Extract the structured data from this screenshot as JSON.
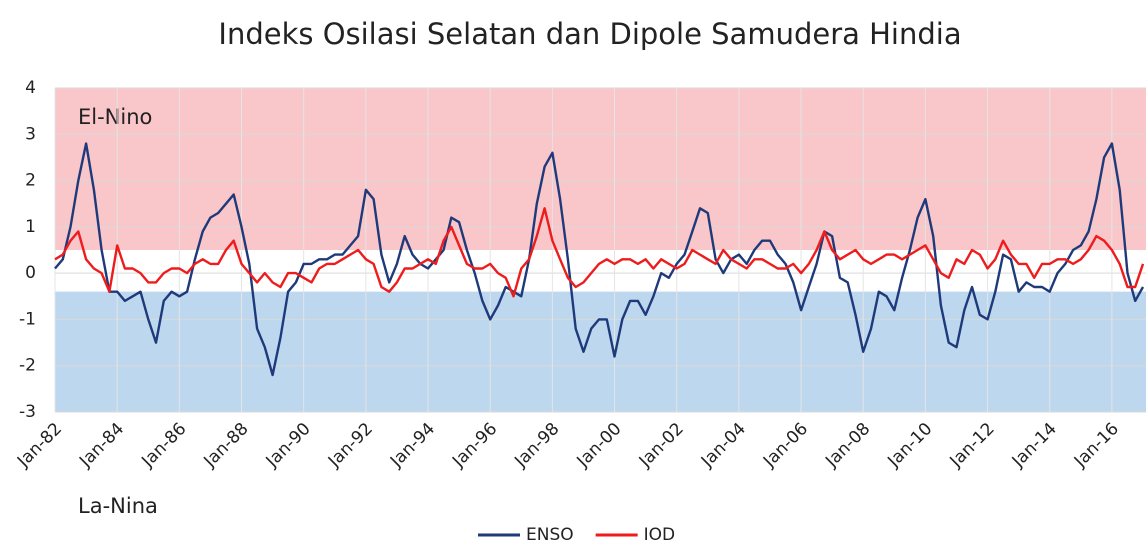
{
  "chart_data": {
    "type": "line",
    "title": "Indeks Osilasi Selatan dan Dipole Samudera Hindia",
    "categories": [
      "Jan-82",
      null,
      null,
      null,
      null,
      null,
      null,
      null,
      "Jan-84",
      null,
      null,
      null,
      null,
      null,
      null,
      null,
      "Jan-86",
      null,
      null,
      null,
      null,
      null,
      null,
      null,
      "Jan-88",
      null,
      null,
      null,
      null,
      null,
      null,
      null,
      "Jan-90",
      null,
      null,
      null,
      null,
      null,
      null,
      null,
      "Jan-92",
      null,
      null,
      null,
      null,
      null,
      null,
      null,
      "Jan-94",
      null,
      null,
      null,
      null,
      null,
      null,
      null,
      "Jan-96",
      null,
      null,
      null,
      null,
      null,
      null,
      null,
      "Jan-98",
      null,
      null,
      null,
      null,
      null,
      null,
      null,
      "Jan-00",
      null,
      null,
      null,
      null,
      null,
      null,
      null,
      "Jan-02",
      null,
      null,
      null,
      null,
      null,
      null,
      null,
      "Jan-04",
      null,
      null,
      null,
      null,
      null,
      null,
      null,
      "Jan-06",
      null,
      null,
      null,
      null,
      null,
      null,
      null,
      "Jan-08",
      null,
      null,
      null,
      null,
      null,
      null,
      null,
      "Jan-10",
      null,
      null,
      null,
      null,
      null,
      null,
      null,
      "Jan-12",
      null,
      null,
      null,
      null,
      null,
      null,
      null,
      "Jan-14",
      null,
      null,
      null,
      null,
      null,
      null,
      null,
      "Jan-16",
      null,
      null,
      null,
      null
    ],
    "series": [
      {
        "name": "ENSO",
        "color": "#1f3a7a",
        "values": [
          0.1,
          0.3,
          1.0,
          2.0,
          2.8,
          1.8,
          0.5,
          -0.4,
          -0.4,
          -0.6,
          -0.5,
          -0.4,
          -1.0,
          -1.5,
          -0.6,
          -0.4,
          -0.5,
          -0.4,
          0.3,
          0.9,
          1.2,
          1.3,
          1.5,
          1.7,
          1.0,
          0.2,
          -1.2,
          -1.6,
          -2.2,
          -1.4,
          -0.4,
          -0.2,
          0.2,
          0.2,
          0.3,
          0.3,
          0.4,
          0.4,
          0.6,
          0.8,
          1.8,
          1.6,
          0.4,
          -0.2,
          0.2,
          0.8,
          0.4,
          0.2,
          0.1,
          0.3,
          0.5,
          1.2,
          1.1,
          0.5,
          0.0,
          -0.6,
          -1.0,
          -0.7,
          -0.3,
          -0.4,
          -0.5,
          0.3,
          1.5,
          2.3,
          2.6,
          1.6,
          0.3,
          -1.2,
          -1.7,
          -1.2,
          -1.0,
          -1.0,
          -1.8,
          -1.0,
          -0.6,
          -0.6,
          -0.9,
          -0.5,
          0.0,
          -0.1,
          0.2,
          0.4,
          0.9,
          1.4,
          1.3,
          0.3,
          0.0,
          0.3,
          0.4,
          0.2,
          0.5,
          0.7,
          0.7,
          0.4,
          0.2,
          -0.2,
          -0.8,
          -0.3,
          0.2,
          0.9,
          0.8,
          -0.1,
          -0.2,
          -0.9,
          -1.7,
          -1.2,
          -0.4,
          -0.5,
          -0.8,
          -0.1,
          0.5,
          1.2,
          1.6,
          0.8,
          -0.7,
          -1.5,
          -1.6,
          -0.8,
          -0.3,
          -0.9,
          -1.0,
          -0.4,
          0.4,
          0.3,
          -0.4,
          -0.2,
          -0.3,
          -0.3,
          -0.4,
          0.0,
          0.2,
          0.5,
          0.6,
          0.9,
          1.6,
          2.5,
          2.8,
          1.8,
          0.0,
          -0.6,
          -0.3
        ]
      },
      {
        "name": "IOD",
        "color": "#ee1c1c",
        "values": [
          0.3,
          0.4,
          0.7,
          0.9,
          0.3,
          0.1,
          0.0,
          -0.4,
          0.6,
          0.1,
          0.1,
          0.0,
          -0.2,
          -0.2,
          0.0,
          0.1,
          0.1,
          0.0,
          0.2,
          0.3,
          0.2,
          0.2,
          0.5,
          0.7,
          0.2,
          0.0,
          -0.2,
          0.0,
          -0.2,
          -0.3,
          0.0,
          0.0,
          -0.1,
          -0.2,
          0.1,
          0.2,
          0.2,
          0.3,
          0.4,
          0.5,
          0.3,
          0.2,
          -0.3,
          -0.4,
          -0.2,
          0.1,
          0.1,
          0.2,
          0.3,
          0.2,
          0.7,
          1.0,
          0.6,
          0.2,
          0.1,
          0.1,
          0.2,
          0.0,
          -0.1,
          -0.5,
          0.1,
          0.3,
          0.8,
          1.4,
          0.7,
          0.3,
          -0.1,
          -0.3,
          -0.2,
          0.0,
          0.2,
          0.3,
          0.2,
          0.3,
          0.3,
          0.2,
          0.3,
          0.1,
          0.3,
          0.2,
          0.1,
          0.2,
          0.5,
          0.4,
          0.3,
          0.2,
          0.5,
          0.3,
          0.2,
          0.1,
          0.3,
          0.3,
          0.2,
          0.1,
          0.1,
          0.2,
          0.0,
          0.2,
          0.5,
          0.9,
          0.5,
          0.3,
          0.4,
          0.5,
          0.3,
          0.2,
          0.3,
          0.4,
          0.4,
          0.3,
          0.4,
          0.5,
          0.6,
          0.3,
          0.0,
          -0.1,
          0.3,
          0.2,
          0.5,
          0.4,
          0.1,
          0.3,
          0.7,
          0.4,
          0.2,
          0.2,
          -0.1,
          0.2,
          0.2,
          0.3,
          0.3,
          0.2,
          0.3,
          0.5,
          0.8,
          0.7,
          0.5,
          0.2,
          -0.3,
          -0.3,
          0.2
        ]
      }
    ],
    "bands": [
      {
        "label": "El-Nino",
        "from": 0.5,
        "to": 4,
        "color": "#f9c6ca"
      },
      {
        "label": "La-Nina",
        "from": -3,
        "to": -0.4,
        "color": "#bdd7ee"
      }
    ],
    "ylim": [
      -3,
      4
    ],
    "yticks": [
      -3,
      -2,
      -1,
      0,
      1,
      2,
      3,
      4
    ],
    "grid": true,
    "legend": "bottom"
  }
}
